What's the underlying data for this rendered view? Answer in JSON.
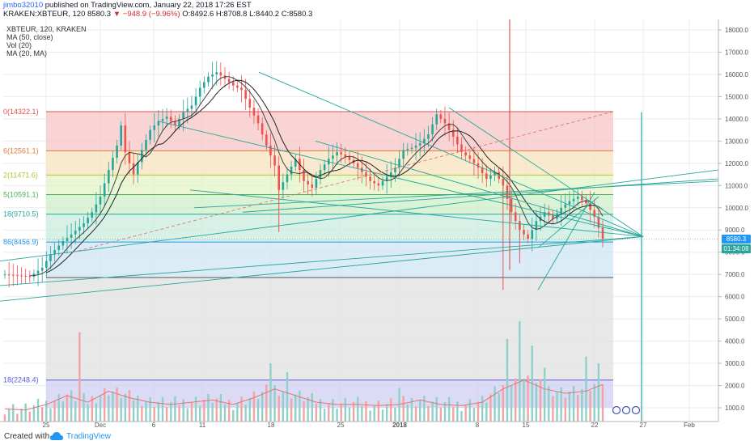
{
  "header": {
    "author": "jimbo32010",
    "published": "published on TradingView.com, January 22, 2018 17:26 EST",
    "symbol": "KRAKEN:XBTEUR, 120",
    "last": "8580.3",
    "change": "−948.9 (−9.96%)",
    "ohlc": "O:8492.6 H:8708.8 L:8440.2 C:8580.3"
  },
  "legend": {
    "symbol": "XBTEUR, 120, KRAKEN",
    "ma50": "MA (50, close)",
    "vol": "Vol (20)",
    "ma20": "MA (20, MA)"
  },
  "footer": {
    "created": "Created with",
    "brand": "TradingView"
  },
  "colors": {
    "up": "#26a69a",
    "down": "#ef5350",
    "trendline": "#26a69a",
    "ma": "#444444",
    "vertical_red": "#e53935",
    "price_tag": "#2196f3",
    "countdown_tag": "#26a69a",
    "fib_bands": [
      "#f5c6c6",
      "#f7e3bf",
      "#e3f3c5",
      "#cdeec8",
      "#c9ecdf",
      "#cfe6f3",
      "#e0e0e0",
      "#cfcff3",
      "#f5c6c6"
    ]
  },
  "chart_data": {
    "type": "candlestick",
    "symbol": "XBTEUR",
    "exchange": "KRAKEN",
    "interval": "120",
    "y_axis": {
      "min": 1000,
      "max": 18000,
      "ticks": [
        1000,
        2000,
        3000,
        4000,
        5000,
        6000,
        7000,
        8000,
        9000,
        10000,
        11000,
        12000,
        13000,
        14000,
        15000,
        16000,
        17000,
        18000
      ],
      "tick_labels": [
        "1000.0",
        "2000.0",
        "3000.0",
        "4000.0",
        "5000.0",
        "6000.0",
        "7000.0",
        "8000.0",
        "9000.0",
        "10000.0",
        "11000.0",
        "12000.0",
        "13000.0",
        "14000.0",
        "15000.0",
        "16000.0",
        "17000.0",
        "18000.0"
      ]
    },
    "x_axis": {
      "tick_labels": [
        "25",
        "Dec",
        "6",
        "11",
        "18",
        "25",
        "2018",
        "8",
        "15",
        "22",
        "27",
        "Feb"
      ]
    },
    "current_price": {
      "value": 8580.3,
      "label": "8580.3",
      "countdown": "01:34:08"
    },
    "fib_levels": [
      {
        "label": "0(14322.1)",
        "value": 14322.1
      },
      {
        "label": "6(12561.1)",
        "value": 12561.1
      },
      {
        "label": "2(11471.6)",
        "value": 11471.6
      },
      {
        "label": "5(10591.1)",
        "value": 10591.1
      },
      {
        "label": "18(9710.5)",
        "value": 9710.5
      },
      {
        "label": "86(8456.9)",
        "value": 8456.9
      },
      {
        "label": "",
        "value": 6860
      },
      {
        "label": "18(2248.4)",
        "value": 2248.4
      }
    ],
    "price_path": [
      [
        0,
        7000
      ],
      [
        3,
        6950
      ],
      [
        6,
        6900
      ],
      [
        9,
        7300
      ],
      [
        11,
        7900
      ],
      [
        14,
        8500
      ],
      [
        16,
        8800
      ],
      [
        19,
        9300
      ],
      [
        21,
        9800
      ],
      [
        23,
        10500
      ],
      [
        25,
        11700
      ],
      [
        27,
        12800
      ],
      [
        28,
        13700
      ],
      [
        29,
        12500
      ],
      [
        31,
        11500
      ],
      [
        33,
        12600
      ],
      [
        35,
        13500
      ],
      [
        37,
        13900
      ],
      [
        39,
        14100
      ],
      [
        41,
        13700
      ],
      [
        43,
        14300
      ],
      [
        45,
        14600
      ],
      [
        47,
        15400
      ],
      [
        49,
        15900
      ],
      [
        51,
        16100
      ],
      [
        53,
        15800
      ],
      [
        55,
        15500
      ],
      [
        57,
        15300
      ],
      [
        59,
        14500
      ],
      [
        61,
        13800
      ],
      [
        63,
        12800
      ],
      [
        65,
        11900
      ],
      [
        66,
        10800
      ],
      [
        68,
        11500
      ],
      [
        70,
        12200
      ],
      [
        72,
        11200
      ],
      [
        74,
        10900
      ],
      [
        76,
        11700
      ],
      [
        78,
        12200
      ],
      [
        80,
        12500
      ],
      [
        82,
        12300
      ],
      [
        84,
        12000
      ],
      [
        86,
        11600
      ],
      [
        88,
        11200
      ],
      [
        90,
        11000
      ],
      [
        92,
        11400
      ],
      [
        94,
        11800
      ],
      [
        96,
        12600
      ],
      [
        98,
        12700
      ],
      [
        100,
        12900
      ],
      [
        102,
        13300
      ],
      [
        104,
        14200
      ],
      [
        106,
        13800
      ],
      [
        108,
        13200
      ],
      [
        110,
        12500
      ],
      [
        112,
        12200
      ],
      [
        114,
        11800
      ],
      [
        116,
        11300
      ],
      [
        118,
        11600
      ],
      [
        120,
        11000
      ],
      [
        122,
        9800
      ],
      [
        124,
        9000
      ],
      [
        126,
        8600
      ],
      [
        128,
        9400
      ],
      [
        130,
        9800
      ],
      [
        132,
        9500
      ],
      [
        134,
        10000
      ],
      [
        136,
        10300
      ],
      [
        138,
        10500
      ],
      [
        140,
        10200
      ],
      [
        142,
        9600
      ],
      [
        144,
        8600
      ]
    ],
    "volume_profile": [
      [
        0,
        700
      ],
      [
        5,
        650
      ],
      [
        10,
        900
      ],
      [
        15,
        1300
      ],
      [
        20,
        1000
      ],
      [
        25,
        1500
      ],
      [
        30,
        1200
      ],
      [
        35,
        1000
      ],
      [
        40,
        900
      ],
      [
        45,
        1000
      ],
      [
        50,
        1100
      ],
      [
        55,
        900
      ],
      [
        60,
        1200
      ],
      [
        65,
        1600
      ],
      [
        70,
        1300
      ],
      [
        75,
        1000
      ],
      [
        80,
        900
      ],
      [
        85,
        900
      ],
      [
        90,
        850
      ],
      [
        95,
        900
      ],
      [
        100,
        1100
      ],
      [
        105,
        900
      ],
      [
        110,
        850
      ],
      [
        115,
        1000
      ],
      [
        120,
        1600
      ],
      [
        125,
        2000
      ],
      [
        130,
        1600
      ],
      [
        135,
        1400
      ],
      [
        140,
        1500
      ],
      [
        144,
        1800
      ]
    ],
    "volume_spikes": [
      [
        18,
        4400
      ],
      [
        64,
        3000
      ],
      [
        68,
        2600
      ],
      [
        95,
        1900
      ],
      [
        121,
        4100
      ],
      [
        124,
        4900
      ],
      [
        127,
        3800
      ],
      [
        130,
        2800
      ],
      [
        140,
        3300
      ],
      [
        143,
        3000
      ]
    ],
    "low_wicks": [
      [
        66,
        8900
      ],
      [
        124,
        7500
      ],
      [
        120,
        6300
      ]
    ],
    "grid": true,
    "title": "",
    "xlabel": "",
    "ylabel": ""
  }
}
